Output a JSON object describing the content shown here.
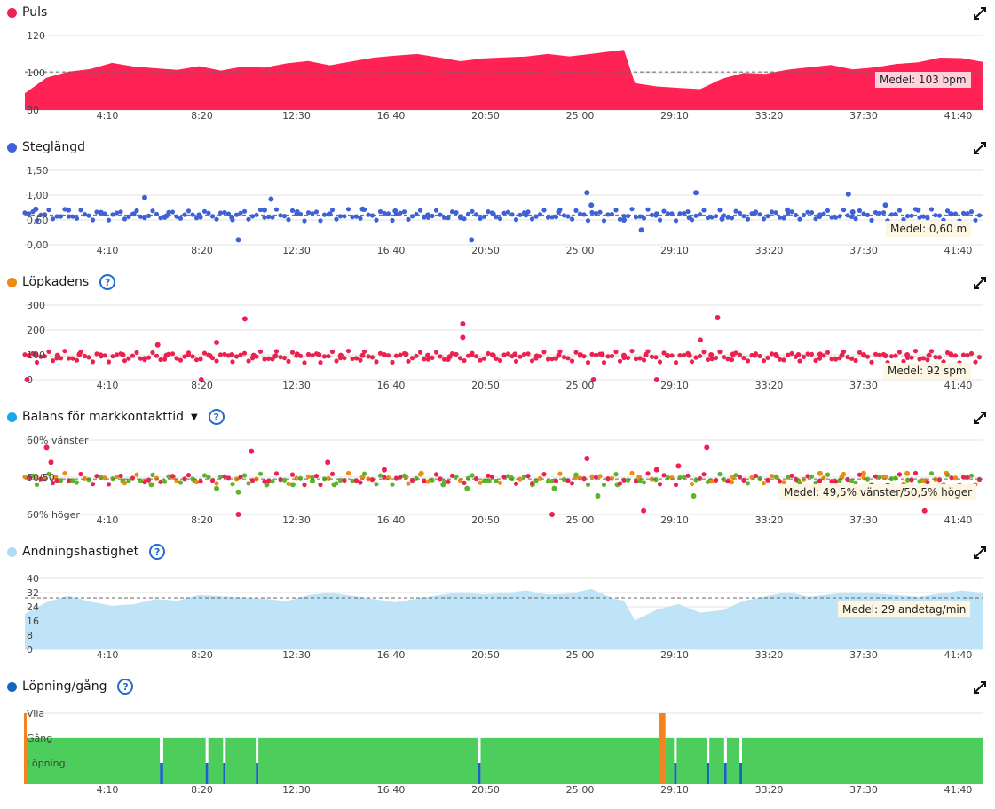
{
  "x_ticks": [
    "4:10",
    "8:20",
    "12:30",
    "16:40",
    "20:50",
    "25:00",
    "29:10",
    "33:20",
    "37:30",
    "41:40"
  ],
  "panels": [
    {
      "id": "puls",
      "title": "Puls",
      "dot_color": "#ee2050",
      "help": false,
      "caret": false,
      "yticks": [
        "120",
        "100",
        "80"
      ],
      "average": "Medel: 103 bpm",
      "chart_data": {
        "type": "area",
        "x_unit": "minutes",
        "x": [
          0,
          1,
          2,
          3,
          4,
          5,
          6,
          7,
          8,
          9,
          10,
          11,
          12,
          13,
          14,
          15,
          16,
          17,
          18,
          19,
          20,
          21,
          22,
          23,
          24,
          25,
          26,
          27,
          27.5,
          28,
          29,
          30,
          31,
          32,
          33,
          34,
          35,
          36,
          37,
          38,
          39,
          40,
          41,
          42,
          43,
          44
        ],
        "values": [
          90,
          100,
          104,
          106,
          110,
          108,
          107,
          106,
          108,
          105,
          107,
          106,
          108,
          109,
          106,
          108,
          110,
          111,
          112,
          110,
          108,
          110,
          111,
          112,
          114,
          113,
          115,
          117,
          118,
          98,
          96,
          95,
          94,
          100,
          103,
          102,
          104,
          105,
          106,
          103,
          104,
          106,
          107,
          110,
          110,
          108
        ],
        "ylim": [
          80,
          125
        ],
        "average": 103,
        "color": "#ff2254"
      }
    },
    {
      "id": "steglangd",
      "title": "Steglängd",
      "dot_color": "#3d62d8",
      "help": false,
      "caret": false,
      "yticks": [
        "1,50",
        "1,00",
        "0,50",
        "0,00"
      ],
      "average": "Medel: 0,60 m",
      "chart_data": {
        "type": "scatter",
        "x_unit": "minutes",
        "x": [
          0.5,
          2,
          3.5,
          5,
          6.5,
          8,
          9.5,
          11,
          12.5,
          14,
          15.5,
          17,
          18.5,
          20,
          21.5,
          23,
          24.5,
          26,
          27.5,
          29,
          30.5,
          32,
          33.5,
          35,
          36.5,
          38,
          39.5,
          41,
          42.5,
          5.5,
          9.8,
          11.3,
          20.5,
          25.8,
          28.3,
          30.8,
          37.8
        ],
        "y": [
          0.72,
          0.7,
          0.65,
          0.62,
          0.58,
          0.6,
          0.55,
          0.7,
          0.66,
          0.62,
          0.72,
          0.68,
          0.6,
          0.55,
          0.62,
          0.6,
          0.66,
          0.8,
          0.5,
          0.62,
          0.55,
          0.52,
          0.64,
          0.7,
          0.6,
          0.66,
          0.8,
          0.7,
          0.62,
          0.95,
          0.1,
          0.92,
          0.1,
          1.05,
          0.3,
          1.05,
          1.02
        ],
        "ylim": [
          0,
          1.5
        ],
        "average": 0.6,
        "color": "#3d62d8"
      }
    },
    {
      "id": "lopkadens",
      "title": "Löpkadens",
      "dot_color": "#f08a10",
      "help": true,
      "caret": false,
      "yticks": [
        "300",
        "200",
        "100",
        "0"
      ],
      "average": "Medel: 92 spm",
      "chart_data": {
        "type": "scatter",
        "x_unit": "minutes",
        "x": [
          0.5,
          1.5,
          2.5,
          3.5,
          4.5,
          5.5,
          6.5,
          7.5,
          8.5,
          9.5,
          10.5,
          11.5,
          12.5,
          13.5,
          14.5,
          15.5,
          16.5,
          17.5,
          18.5,
          19.5,
          20.5,
          21.5,
          22.5,
          23.5,
          24.5,
          25.5,
          26.5,
          27.5,
          28.5,
          29.5,
          30.5,
          31.5,
          32.5,
          33.5,
          34.5,
          35.5,
          36.5,
          37.5,
          38.5,
          39.5,
          40.5,
          41.5,
          42.5,
          8.8,
          10.1,
          20.1,
          20.1,
          31.0,
          31.8,
          6.1,
          0.1,
          8.1,
          26.1,
          29.0
        ],
        "y": [
          100,
          98,
          102,
          95,
          100,
          85,
          98,
          102,
          96,
          100,
          98,
          95,
          102,
          100,
          98,
          97,
          100,
          102,
          98,
          92,
          100,
          98,
          102,
          95,
          98,
          100,
          102,
          98,
          100,
          96,
          98,
          100,
          102,
          98,
          96,
          100,
          102,
          98,
          100,
          96,
          100,
          98,
          102,
          150,
          245,
          225,
          170,
          160,
          250,
          140,
          0,
          0,
          0,
          0
        ],
        "ylim": [
          0,
          300
        ],
        "average": 92,
        "color": "#ee2050"
      }
    },
    {
      "id": "balans",
      "title": "Balans för markkontakttid",
      "dot_color": "#19a8e8",
      "help": true,
      "caret": true,
      "yticks": [
        "60% vänster",
        "50/50",
        "60% höger"
      ],
      "average": "Medel: 49,5% vänster/50,5% höger",
      "chart_data": {
        "type": "scatter",
        "x_unit": "minutes",
        "y_unit": "percent_left",
        "x": [
          0.5,
          1.2,
          2.2,
          3.5,
          4.5,
          5.8,
          6.8,
          7.8,
          8.8,
          9.8,
          11.1,
          12.3,
          13.2,
          14.2,
          15.5,
          16.5,
          17.5,
          18.2,
          19.2,
          20.3,
          21.3,
          22.3,
          23.3,
          24.3,
          25.3,
          26.3,
          27.2,
          28.2,
          29.0,
          30.0,
          30.7,
          31.5,
          32.5,
          34.5,
          35.5,
          36.5,
          37.5,
          38.5,
          39.5,
          40.5,
          41.3,
          42.3,
          1.0,
          10.4,
          13.9,
          25.8,
          31.3,
          1.4,
          9.8,
          24.2,
          28.4,
          41.3
        ],
        "y": [
          50,
          54,
          49,
          50,
          49,
          48,
          50,
          49,
          47,
          46,
          48,
          48,
          49,
          48,
          50,
          52,
          50,
          51,
          48,
          47,
          49,
          50,
          48,
          47,
          50,
          45,
          48,
          50,
          52,
          53,
          45,
          49,
          50,
          50,
          49,
          51,
          50,
          51,
          50,
          51,
          49,
          51,
          58,
          57,
          54,
          55,
          58,
          50,
          40,
          40,
          41,
          41
        ],
        "ylim": [
          40,
          60
        ],
        "average": 49.5,
        "colors": {
          "right": "#ee2050",
          "mid": "#f08a10",
          "left": "#5ab52a"
        }
      }
    },
    {
      "id": "andning",
      "title": "Andningshastighet",
      "dot_color": "#b0dcf5",
      "help": true,
      "caret": false,
      "yticks": [
        "40",
        "32",
        "24",
        "16",
        "8",
        "0"
      ],
      "average": "Medel: 29 andetag/min",
      "chart_data": {
        "type": "area",
        "x_unit": "minutes",
        "x": [
          0,
          1,
          2,
          3,
          4,
          5,
          6,
          7,
          8,
          9,
          10,
          11,
          12,
          13,
          14,
          15,
          16,
          17,
          18,
          19,
          20,
          21,
          22,
          23,
          24,
          25,
          26,
          27,
          27.5,
          28,
          29,
          30,
          31,
          32,
          33,
          34,
          35,
          36,
          37,
          38,
          39,
          40,
          41,
          42,
          43,
          44
        ],
        "values": [
          20,
          27,
          31,
          28,
          26,
          27,
          30,
          29,
          32,
          31,
          30,
          29,
          27,
          30,
          31,
          29,
          27,
          25,
          27,
          29,
          31,
          30,
          31,
          33,
          31,
          32,
          35,
          30,
          29,
          18,
          24,
          27,
          22,
          23,
          28,
          30,
          32,
          29,
          30,
          31,
          30,
          29,
          28,
          30,
          32,
          31
        ],
        "ylim": [
          0,
          40
        ],
        "average": 29,
        "color": "#bfe4f8"
      }
    },
    {
      "id": "lopning",
      "title": "Löpning/gång",
      "dot_color": "#1565c0",
      "help": true,
      "caret": false,
      "yticks": [
        "Vila",
        "Gång",
        "Löpning"
      ],
      "average": "",
      "chart_data": {
        "type": "bar",
        "x_unit": "minutes",
        "segments": [
          {
            "from": 0,
            "to": 6.2,
            "state": "Gång"
          },
          {
            "from": 6.2,
            "to": 6.35,
            "state": "Löpning"
          },
          {
            "from": 6.35,
            "to": 8.3,
            "state": "Gång"
          },
          {
            "from": 8.3,
            "to": 8.42,
            "state": "Löpning"
          },
          {
            "from": 8.42,
            "to": 9.1,
            "state": "Gång"
          },
          {
            "from": 9.1,
            "to": 9.22,
            "state": "Löpning"
          },
          {
            "from": 9.22,
            "to": 10.6,
            "state": "Gång"
          },
          {
            "from": 10.6,
            "to": 10.72,
            "state": "Löpning"
          },
          {
            "from": 10.72,
            "to": 20.8,
            "state": "Gång"
          },
          {
            "from": 20.8,
            "to": 20.92,
            "state": "Löpning"
          },
          {
            "from": 20.92,
            "to": 29.1,
            "state": "Gång"
          },
          {
            "from": 29.1,
            "to": 29.4,
            "state": "Vila"
          },
          {
            "from": 29.4,
            "to": 29.8,
            "state": "Gång"
          },
          {
            "from": 29.8,
            "to": 29.92,
            "state": "Löpning"
          },
          {
            "from": 29.92,
            "to": 31.3,
            "state": "Gång"
          },
          {
            "from": 31.3,
            "to": 31.42,
            "state": "Löpning"
          },
          {
            "from": 31.42,
            "to": 32.1,
            "state": "Gång"
          },
          {
            "from": 32.1,
            "to": 32.22,
            "state": "Löpning"
          },
          {
            "from": 32.22,
            "to": 32.8,
            "state": "Gång"
          },
          {
            "from": 32.8,
            "to": 32.92,
            "state": "Löpning"
          },
          {
            "from": 32.92,
            "to": 44,
            "state": "Gång"
          }
        ],
        "colors": {
          "Gång": "#4ccd5c",
          "Löpning": "#1565c0",
          "Vila": "#f58220"
        }
      }
    }
  ]
}
